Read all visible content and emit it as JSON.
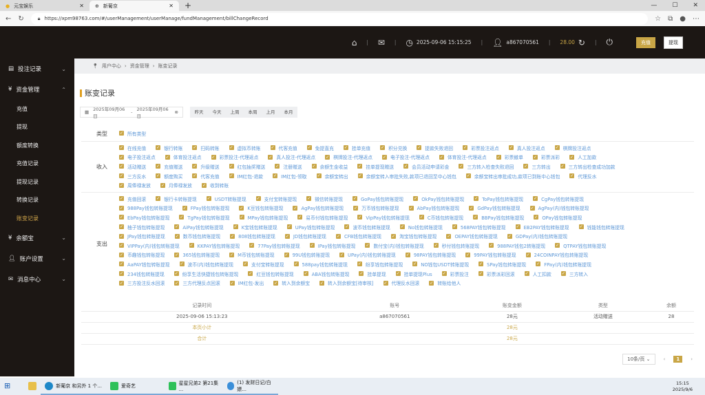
{
  "browser": {
    "tabs": [
      {
        "label": "元宝娱乐"
      },
      {
        "label": "新葡京"
      }
    ],
    "url": "https://xpm98763.com/#/userManagement/userManage/fundManagement/billChangeRecord"
  },
  "header": {
    "datetime": "2025-09-06 15:15:25",
    "username": "a867070561",
    "balance": "28.00",
    "deposit_label": "充值",
    "withdraw_label": "提现"
  },
  "sidebar": {
    "items": [
      {
        "label": "投注记录",
        "icon": "bet-record-icon"
      },
      {
        "label": "资金管理",
        "icon": "fund-icon",
        "expanded": true,
        "children": [
          {
            "label": "充值"
          },
          {
            "label": "提现"
          },
          {
            "label": "额度转换"
          },
          {
            "label": "充值记录"
          },
          {
            "label": "提现记录"
          },
          {
            "label": "转换记录"
          },
          {
            "label": "账变记录",
            "active": true
          }
        ]
      },
      {
        "label": "余额宝",
        "icon": "yuebao-icon"
      },
      {
        "label": "账户设置",
        "icon": "user-icon"
      },
      {
        "label": "消息中心",
        "icon": "mail-icon"
      }
    ]
  },
  "breadcrumb": [
    "用户中心",
    "资金管理",
    "账变记录"
  ],
  "page_title": "账变记录",
  "filters": {
    "date_start": "2025年09月06日",
    "date_sep": "-",
    "date_end": "2025年09月06日",
    "quick": [
      "昨天",
      "今天",
      "上周",
      "本周",
      "上月",
      "本月"
    ]
  },
  "types": {
    "label": "类型",
    "all": "所有类型",
    "income_label": "收入",
    "income_rows": [
      [
        "在线充值",
        "银行转账",
        "扫码转账",
        "虚拟币转账",
        "代客充值",
        "免提直充",
        "挂单充值",
        "积分兑换",
        "提款失败退回",
        "彩票投注返点",
        "真人投注返点",
        "棋牌投注返点"
      ],
      [
        "电子投注返点",
        "体育投注返点",
        "彩票投注-代理返点",
        "真人投注-代理返点",
        "棋牌投注-代理返点",
        "电子投注-代理返点",
        "体育投注-代理返点",
        "彩票撤单",
        "彩票派彩",
        "人工加款"
      ],
      [
        "活动赠送",
        "充值赠送",
        "升级赠送",
        "红包抽奖赠送",
        "注册赠送",
        "余额生金收益",
        "挂单提现赠送",
        "会员活动申请彩金",
        "三方转入检查失败退回",
        "三方转出",
        "三方转出检查成功加款"
      ],
      [
        "三方反水",
        "额度购买",
        "代客充值",
        "IM红包-退款",
        "IM红包-领取",
        "余额宝转出",
        "余额宝转入审批失败,款项已退回至中心钱包",
        "余额宝转出审批成功,款项已到账中心钱包",
        "代理反水"
      ],
      [
        "周俸禄发放",
        "月俸禄发放",
        "收到转账"
      ]
    ],
    "expense_label": "支出",
    "expense_rows": [
      [
        "充值回滚",
        "银行卡转账提现",
        "USDT转账提现",
        "支付宝转账提现",
        "微信转账提现",
        "GoPay钱包转账提现",
        "OkPay钱包转账提现",
        "ToPay钱包转账提现",
        "CgPay钱包转账提现"
      ],
      [
        "988Pay钱包转账提现",
        "FPay钱包转账提现",
        "K豆钱包转账提现",
        "AgPay钱包转账提现",
        "万币钱包转账提现",
        "AbPay钱包转账提现",
        "GdPay钱包转账提现",
        "AgPay(内)钱包转账提现"
      ],
      [
        "EbPay钱包转账提现",
        "TgPay钱包转账提现",
        "MPay钱包转账提现",
        "易币付钱包转账提现",
        "VipPay钱包转账提现",
        "C币钱包转账提现",
        "BBPay钱包转账提现",
        "OPay钱包转账提现"
      ],
      [
        "柚子钱包转账提现",
        "AiPay钱包转账提现",
        "K宝钱包转账提现",
        "UPay钱包转账提现",
        "波币钱包转账提现",
        "No钱包转账提现",
        "568PAY钱包转账提现",
        "EB2PAY钱包转账提现",
        "钱能钱包转账提现"
      ],
      [
        "JPay钱包转账提现",
        "数币钱包转账提现",
        "808钱包转账提现",
        "JD钱包转账提现",
        "CFB钱包转账提现",
        "淘宝钱包转账提现",
        "OEPAY钱包转账提现",
        "GDPay(内)钱包转账提现"
      ],
      [
        "VIPPay(内)钱包转账提现",
        "KKPAY钱包转账提现",
        "77Pay钱包转账提现",
        "IPay钱包转账提现",
        "数付宝(内)钱包转账提现",
        "秒付钱包转账提现",
        "988PAY钱包2转账提现",
        "QTPAY钱包转账提现"
      ],
      [
        "币趣钱包转账提现",
        "365钱包转账提现",
        "M币钱包转账提现",
        "99U钱包转账提现",
        "UPay(内)钱包转账提现",
        "98PAY钱包转账提现",
        "99PAY钱包转账提现",
        "24COINPAY钱包转账提现"
      ],
      [
        "AaPAY钱包转账提现",
        "波币(内)钱包转账提现",
        "支付宝转账提现",
        "588pay钱包转账提现",
        "纷享钱包转账提现",
        "NO钱包USDT转账提现",
        "SPay钱包转账提现",
        "FPay(内)钱包转账提现"
      ],
      [
        "234钱包转账提现",
        "纷享生活快捷钱包转账提现",
        "红豆钱包转账提现",
        "ABA钱包转账提现",
        "挂单提现",
        "挂单提现Plus",
        "彩票投注",
        "彩票派彩回滚",
        "人工扣款",
        "三方转入"
      ],
      [
        "三方投注反水回滚",
        "三方代理反点回滚",
        "IM红包-发出",
        "转入到余额宝",
        "转入到余额宝[待审核]",
        "代理反水回滚",
        "转账给他人"
      ]
    ]
  },
  "table": {
    "columns": [
      "记录时间",
      "账号",
      "账变金额",
      "类型",
      "余额"
    ],
    "rows": [
      [
        "2025-09-06 15:13:23",
        "a867070561",
        "28元",
        "活动赠送",
        "28"
      ]
    ],
    "subtotal": {
      "label": "本页小计",
      "amount": "28元"
    },
    "total": {
      "label": "合计",
      "amount": "28元"
    }
  },
  "pagination": {
    "page_size": "10条/页",
    "current_page": "1"
  },
  "taskbar": {
    "items": [
      "新葡京 和另外 1 个...",
      "爱奇艺",
      "星星兄弟2 第21集 ...",
      "(1) 发财日记/白嫖..."
    ],
    "time": "15:15",
    "date": "2025/9/6"
  },
  "colors": {
    "accent": "#c9a646",
    "dark": "#1c1714",
    "link": "#5b96d6"
  }
}
